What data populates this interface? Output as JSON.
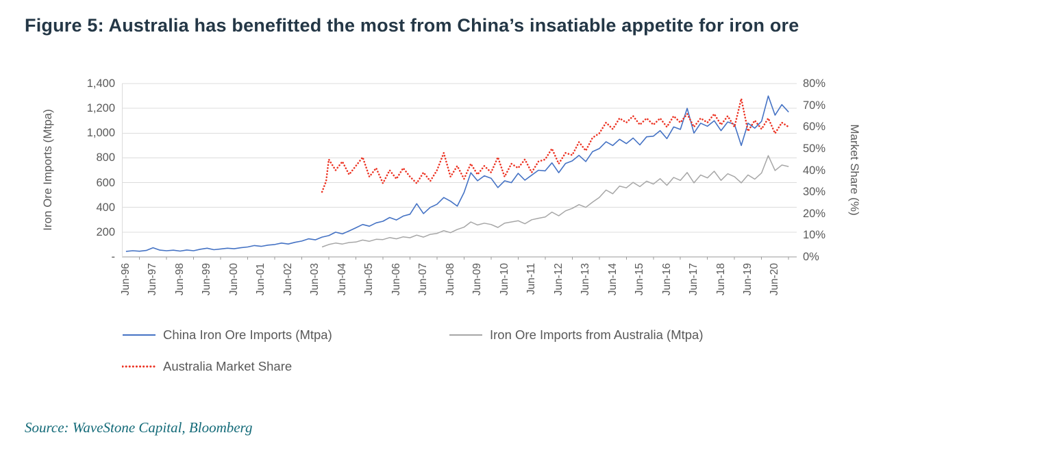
{
  "page": {
    "title": "Figure 5: Australia has benefitted the most from China’s insatiable appetite for iron ore",
    "source": "Source: WaveStone Capital, Bloomberg"
  },
  "chart_data": {
    "type": "line",
    "title": "Figure 5: Australia has benefitted the most from China’s insatiable appetite for iron ore",
    "grid": true,
    "grid_color": "#dcdcdc",
    "axis_color": "#9a9a9a",
    "legend_position": "bottom",
    "x_range": [
      1996.35,
      2021.3
    ],
    "x_tick_start": 1996.5,
    "x_tick_interval": 1,
    "x_ticks": [
      "Jun-96",
      "Jun-97",
      "Jun-98",
      "Jun-99",
      "Jun-00",
      "Jun-01",
      "Jun-02",
      "Jun-03",
      "Jun-04",
      "Jun-05",
      "Jun-06",
      "Jun-07",
      "Jun-08",
      "Jun-09",
      "Jun-10",
      "Jun-11",
      "Jun-12",
      "Jun-13",
      "Jun-14",
      "Jun-15",
      "Jun-16",
      "Jun-17",
      "Jun-18",
      "Jun-19",
      "Jun-20"
    ],
    "y_left": {
      "label": "Iron Ore Imports (Mtpa)",
      "min": 0,
      "max": 1400,
      "step": 200,
      "ticks": [
        "1,400",
        "1,200",
        "1,000",
        "800",
        "600",
        "400",
        "200",
        "-"
      ]
    },
    "y_right": {
      "label": "Market Share (%)",
      "min": 0,
      "max": 80,
      "step": 10,
      "ticks": [
        "80%",
        "70%",
        "60%",
        "50%",
        "40%",
        "30%",
        "20%",
        "10%",
        "0%"
      ]
    },
    "series": [
      {
        "id": "china-iron-ore-imports",
        "name": "China Iron Ore Imports (Mtpa)",
        "axis": "left",
        "color": "#4472c4",
        "width": 1.6,
        "z": 2,
        "points": [
          [
            1996.5,
            45
          ],
          [
            1996.75,
            50
          ],
          [
            1997.0,
            46
          ],
          [
            1997.25,
            52
          ],
          [
            1997.5,
            74
          ],
          [
            1997.75,
            55
          ],
          [
            1998.0,
            50
          ],
          [
            1998.25,
            54
          ],
          [
            1998.5,
            47
          ],
          [
            1998.75,
            56
          ],
          [
            1999.0,
            50
          ],
          [
            1999.25,
            62
          ],
          [
            1999.5,
            70
          ],
          [
            1999.75,
            58
          ],
          [
            2000.0,
            64
          ],
          [
            2000.25,
            70
          ],
          [
            2000.5,
            66
          ],
          [
            2000.75,
            74
          ],
          [
            2001.0,
            80
          ],
          [
            2001.25,
            92
          ],
          [
            2001.5,
            85
          ],
          [
            2001.75,
            95
          ],
          [
            2002.0,
            100
          ],
          [
            2002.25,
            112
          ],
          [
            2002.5,
            104
          ],
          [
            2002.75,
            118
          ],
          [
            2003.0,
            128
          ],
          [
            2003.25,
            146
          ],
          [
            2003.5,
            138
          ],
          [
            2003.75,
            160
          ],
          [
            2004.0,
            172
          ],
          [
            2004.25,
            200
          ],
          [
            2004.5,
            186
          ],
          [
            2004.75,
            210
          ],
          [
            2005.0,
            235
          ],
          [
            2005.25,
            262
          ],
          [
            2005.5,
            248
          ],
          [
            2005.75,
            275
          ],
          [
            2006.0,
            288
          ],
          [
            2006.25,
            318
          ],
          [
            2006.5,
            298
          ],
          [
            2006.75,
            330
          ],
          [
            2007.0,
            345
          ],
          [
            2007.25,
            430
          ],
          [
            2007.5,
            350
          ],
          [
            2007.75,
            400
          ],
          [
            2008.0,
            425
          ],
          [
            2008.25,
            480
          ],
          [
            2008.5,
            450
          ],
          [
            2008.75,
            410
          ],
          [
            2009.0,
            520
          ],
          [
            2009.25,
            680
          ],
          [
            2009.5,
            615
          ],
          [
            2009.75,
            655
          ],
          [
            2010.0,
            635
          ],
          [
            2010.25,
            560
          ],
          [
            2010.5,
            615
          ],
          [
            2010.75,
            600
          ],
          [
            2011.0,
            675
          ],
          [
            2011.25,
            620
          ],
          [
            2011.5,
            660
          ],
          [
            2011.75,
            700
          ],
          [
            2012.0,
            695
          ],
          [
            2012.25,
            760
          ],
          [
            2012.5,
            680
          ],
          [
            2012.75,
            755
          ],
          [
            2013.0,
            775
          ],
          [
            2013.25,
            820
          ],
          [
            2013.5,
            770
          ],
          [
            2013.75,
            850
          ],
          [
            2014.0,
            875
          ],
          [
            2014.25,
            930
          ],
          [
            2014.5,
            900
          ],
          [
            2014.75,
            950
          ],
          [
            2015.0,
            915
          ],
          [
            2015.25,
            960
          ],
          [
            2015.5,
            905
          ],
          [
            2015.75,
            970
          ],
          [
            2016.0,
            975
          ],
          [
            2016.25,
            1020
          ],
          [
            2016.5,
            955
          ],
          [
            2016.75,
            1050
          ],
          [
            2017.0,
            1030
          ],
          [
            2017.25,
            1200
          ],
          [
            2017.5,
            1000
          ],
          [
            2017.75,
            1080
          ],
          [
            2018.0,
            1055
          ],
          [
            2018.25,
            1100
          ],
          [
            2018.5,
            1020
          ],
          [
            2018.75,
            1090
          ],
          [
            2019.0,
            1070
          ],
          [
            2019.25,
            900
          ],
          [
            2019.5,
            1080
          ],
          [
            2019.75,
            1040
          ],
          [
            2020.0,
            1095
          ],
          [
            2020.25,
            1300
          ],
          [
            2020.5,
            1145
          ],
          [
            2020.75,
            1230
          ],
          [
            2021.0,
            1170
          ]
        ]
      },
      {
        "id": "iron-ore-imports-from-australia",
        "name": "Iron Ore Imports from Australia (Mtpa)",
        "axis": "left",
        "color": "#a6a6a6",
        "width": 1.5,
        "z": 1,
        "points": [
          [
            2003.75,
            80
          ],
          [
            2004.0,
            100
          ],
          [
            2004.25,
            112
          ],
          [
            2004.5,
            104
          ],
          [
            2004.75,
            116
          ],
          [
            2005.0,
            120
          ],
          [
            2005.25,
            136
          ],
          [
            2005.5,
            126
          ],
          [
            2005.75,
            142
          ],
          [
            2006.0,
            140
          ],
          [
            2006.25,
            156
          ],
          [
            2006.5,
            146
          ],
          [
            2006.75,
            162
          ],
          [
            2007.0,
            155
          ],
          [
            2007.25,
            176
          ],
          [
            2007.5,
            160
          ],
          [
            2007.75,
            182
          ],
          [
            2008.0,
            190
          ],
          [
            2008.25,
            212
          ],
          [
            2008.5,
            196
          ],
          [
            2008.75,
            222
          ],
          [
            2009.0,
            240
          ],
          [
            2009.25,
            282
          ],
          [
            2009.5,
            258
          ],
          [
            2009.75,
            272
          ],
          [
            2010.0,
            262
          ],
          [
            2010.25,
            238
          ],
          [
            2010.5,
            272
          ],
          [
            2010.75,
            282
          ],
          [
            2011.0,
            292
          ],
          [
            2011.25,
            268
          ],
          [
            2011.5,
            300
          ],
          [
            2011.75,
            312
          ],
          [
            2012.0,
            322
          ],
          [
            2012.25,
            362
          ],
          [
            2012.5,
            332
          ],
          [
            2012.75,
            372
          ],
          [
            2013.0,
            392
          ],
          [
            2013.25,
            422
          ],
          [
            2013.5,
            400
          ],
          [
            2013.75,
            442
          ],
          [
            2014.0,
            480
          ],
          [
            2014.25,
            540
          ],
          [
            2014.5,
            510
          ],
          [
            2014.75,
            572
          ],
          [
            2015.0,
            558
          ],
          [
            2015.25,
            602
          ],
          [
            2015.5,
            568
          ],
          [
            2015.75,
            612
          ],
          [
            2016.0,
            588
          ],
          [
            2016.25,
            632
          ],
          [
            2016.5,
            578
          ],
          [
            2016.75,
            642
          ],
          [
            2017.0,
            618
          ],
          [
            2017.25,
            682
          ],
          [
            2017.5,
            598
          ],
          [
            2017.75,
            662
          ],
          [
            2018.0,
            638
          ],
          [
            2018.25,
            692
          ],
          [
            2018.5,
            618
          ],
          [
            2018.75,
            672
          ],
          [
            2019.0,
            648
          ],
          [
            2019.25,
            598
          ],
          [
            2019.5,
            662
          ],
          [
            2019.75,
            628
          ],
          [
            2020.0,
            678
          ],
          [
            2020.25,
            818
          ],
          [
            2020.5,
            698
          ],
          [
            2020.75,
            742
          ],
          [
            2021.0,
            730
          ]
        ]
      },
      {
        "id": "australia-market-share",
        "name": "Australia Market Share",
        "axis": "right",
        "color": "#ec3323",
        "width": 2.6,
        "dash": "0.1 4.4",
        "z": 3,
        "points": [
          [
            2003.75,
            30
          ],
          [
            2003.9,
            35
          ],
          [
            2004.0,
            45
          ],
          [
            2004.25,
            40
          ],
          [
            2004.5,
            44
          ],
          [
            2004.75,
            38
          ],
          [
            2005.0,
            42
          ],
          [
            2005.25,
            46
          ],
          [
            2005.5,
            37
          ],
          [
            2005.75,
            41
          ],
          [
            2006.0,
            34
          ],
          [
            2006.25,
            40
          ],
          [
            2006.5,
            36
          ],
          [
            2006.75,
            41
          ],
          [
            2007.0,
            37
          ],
          [
            2007.25,
            34
          ],
          [
            2007.5,
            39
          ],
          [
            2007.75,
            35
          ],
          [
            2008.0,
            40
          ],
          [
            2008.25,
            48
          ],
          [
            2008.5,
            37
          ],
          [
            2008.75,
            42
          ],
          [
            2009.0,
            36
          ],
          [
            2009.25,
            43
          ],
          [
            2009.5,
            38
          ],
          [
            2009.75,
            42
          ],
          [
            2010.0,
            39
          ],
          [
            2010.25,
            46
          ],
          [
            2010.5,
            37
          ],
          [
            2010.75,
            43
          ],
          [
            2011.0,
            41
          ],
          [
            2011.25,
            45
          ],
          [
            2011.5,
            39
          ],
          [
            2011.75,
            44
          ],
          [
            2012.0,
            45
          ],
          [
            2012.25,
            50
          ],
          [
            2012.5,
            43
          ],
          [
            2012.75,
            48
          ],
          [
            2013.0,
            47
          ],
          [
            2013.25,
            53
          ],
          [
            2013.5,
            49
          ],
          [
            2013.75,
            55
          ],
          [
            2014.0,
            57
          ],
          [
            2014.25,
            62
          ],
          [
            2014.5,
            59
          ],
          [
            2014.75,
            64
          ],
          [
            2015.0,
            62
          ],
          [
            2015.25,
            65
          ],
          [
            2015.5,
            61
          ],
          [
            2015.75,
            64
          ],
          [
            2016.0,
            61
          ],
          [
            2016.25,
            64
          ],
          [
            2016.5,
            60
          ],
          [
            2016.75,
            65
          ],
          [
            2017.0,
            62
          ],
          [
            2017.25,
            66
          ],
          [
            2017.5,
            60
          ],
          [
            2017.75,
            64
          ],
          [
            2018.0,
            62
          ],
          [
            2018.25,
            66
          ],
          [
            2018.5,
            61
          ],
          [
            2018.75,
            65
          ],
          [
            2019.0,
            60
          ],
          [
            2019.25,
            73
          ],
          [
            2019.5,
            58
          ],
          [
            2019.75,
            63
          ],
          [
            2020.0,
            59
          ],
          [
            2020.25,
            64
          ],
          [
            2020.5,
            57
          ],
          [
            2020.75,
            62
          ],
          [
            2021.0,
            60
          ]
        ]
      }
    ]
  }
}
